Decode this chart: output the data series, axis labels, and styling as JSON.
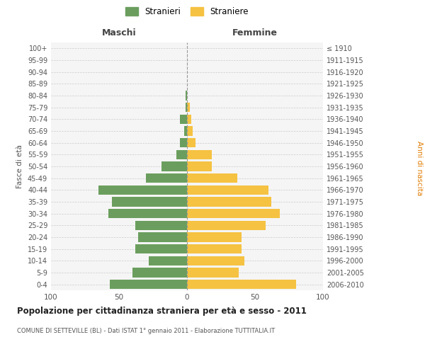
{
  "age_groups": [
    "0-4",
    "5-9",
    "10-14",
    "15-19",
    "20-24",
    "25-29",
    "30-34",
    "35-39",
    "40-44",
    "45-49",
    "50-54",
    "55-59",
    "60-64",
    "65-69",
    "70-74",
    "75-79",
    "80-84",
    "85-89",
    "90-94",
    "95-99",
    "100+"
  ],
  "birth_years": [
    "2006-2010",
    "2001-2005",
    "1996-2000",
    "1991-1995",
    "1986-1990",
    "1981-1985",
    "1976-1980",
    "1971-1975",
    "1966-1970",
    "1961-1965",
    "1956-1960",
    "1951-1955",
    "1946-1950",
    "1941-1945",
    "1936-1940",
    "1931-1935",
    "1926-1930",
    "1921-1925",
    "1916-1920",
    "1911-1915",
    "≤ 1910"
  ],
  "maschi": [
    57,
    40,
    28,
    38,
    36,
    38,
    58,
    55,
    65,
    30,
    19,
    8,
    5,
    2,
    5,
    1,
    1,
    0,
    0,
    0,
    0
  ],
  "femmine": [
    80,
    38,
    42,
    40,
    40,
    58,
    68,
    62,
    60,
    37,
    18,
    18,
    6,
    4,
    3,
    2,
    0,
    0,
    0,
    0,
    0
  ],
  "color_maschi": "#6b9e5e",
  "color_femmine": "#f5c242",
  "title": "Popolazione per cittadinanza straniera per età e sesso - 2011",
  "subtitle": "COMUNE DI SETTEVILLE (BL) - Dati ISTAT 1° gennaio 2011 - Elaborazione TUTTITALIA.IT",
  "ylabel_left": "Fasce di età",
  "ylabel_right": "Anni di nascita",
  "xlim": 100,
  "legend_maschi": "Stranieri",
  "legend_femmine": "Straniere",
  "maschi_header": "Maschi",
  "femmine_header": "Femmine",
  "background_color": "#ffffff",
  "plot_bg_color": "#f5f5f5",
  "grid_color": "#cccccc"
}
